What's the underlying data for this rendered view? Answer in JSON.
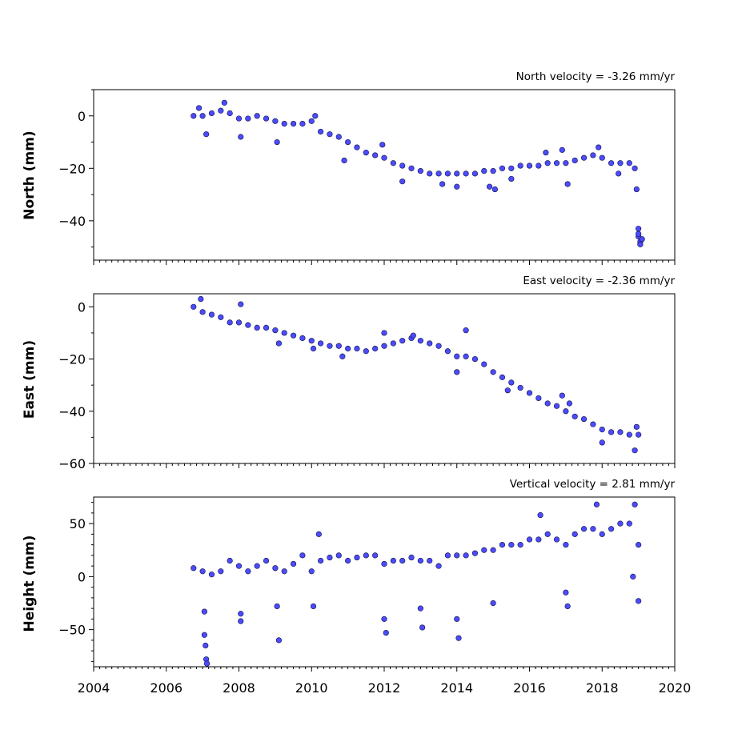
{
  "chart_data": [
    {
      "type": "scatter",
      "title": "North velocity = -3.26 mm/yr",
      "ylabel": "North (mm)",
      "ylim": [
        -55,
        10
      ],
      "yticks": [
        0,
        -20,
        -40
      ],
      "xlim": [
        2004,
        2020
      ],
      "xticks": [],
      "marker_color": "#4b4bff",
      "series": [
        {
          "values": [
            {
              "x": 2006.75,
              "y": 0
            },
            {
              "x": 2007.0,
              "y": 0
            },
            {
              "x": 2007.25,
              "y": 1
            },
            {
              "x": 2007.5,
              "y": 2
            },
            {
              "x": 2007.75,
              "y": 1
            },
            {
              "x": 2008.0,
              "y": -1
            },
            {
              "x": 2008.25,
              "y": -1
            },
            {
              "x": 2008.5,
              "y": 0
            },
            {
              "x": 2008.75,
              "y": -1
            },
            {
              "x": 2009.0,
              "y": -2
            },
            {
              "x": 2009.25,
              "y": -3
            },
            {
              "x": 2009.5,
              "y": -3
            },
            {
              "x": 2009.75,
              "y": -3
            },
            {
              "x": 2010.0,
              "y": -2
            },
            {
              "x": 2010.25,
              "y": -6
            },
            {
              "x": 2010.5,
              "y": -7
            },
            {
              "x": 2010.75,
              "y": -8
            },
            {
              "x": 2011.0,
              "y": -10
            },
            {
              "x": 2011.25,
              "y": -12
            },
            {
              "x": 2011.5,
              "y": -14
            },
            {
              "x": 2011.75,
              "y": -15
            },
            {
              "x": 2012.0,
              "y": -16
            },
            {
              "x": 2012.25,
              "y": -18
            },
            {
              "x": 2012.5,
              "y": -19
            },
            {
              "x": 2012.75,
              "y": -20
            },
            {
              "x": 2013.0,
              "y": -21
            },
            {
              "x": 2013.25,
              "y": -22
            },
            {
              "x": 2013.5,
              "y": -22
            },
            {
              "x": 2013.75,
              "y": -22
            },
            {
              "x": 2014.0,
              "y": -22
            },
            {
              "x": 2014.25,
              "y": -22
            },
            {
              "x": 2014.5,
              "y": -22
            },
            {
              "x": 2014.75,
              "y": -21
            },
            {
              "x": 2015.0,
              "y": -21
            },
            {
              "x": 2015.25,
              "y": -20
            },
            {
              "x": 2015.5,
              "y": -20
            },
            {
              "x": 2015.75,
              "y": -19
            },
            {
              "x": 2016.0,
              "y": -19
            },
            {
              "x": 2016.25,
              "y": -19
            },
            {
              "x": 2016.5,
              "y": -18
            },
            {
              "x": 2016.75,
              "y": -18
            },
            {
              "x": 2017.0,
              "y": -18
            },
            {
              "x": 2017.25,
              "y": -17
            },
            {
              "x": 2017.5,
              "y": -16
            },
            {
              "x": 2017.75,
              "y": -15
            },
            {
              "x": 2018.0,
              "y": -16
            },
            {
              "x": 2018.25,
              "y": -18
            },
            {
              "x": 2018.5,
              "y": -18
            },
            {
              "x": 2018.75,
              "y": -18
            },
            {
              "x": 2018.9,
              "y": -20
            },
            {
              "x": 2006.9,
              "y": 3
            },
            {
              "x": 2007.1,
              "y": -7
            },
            {
              "x": 2007.6,
              "y": 5
            },
            {
              "x": 2008.05,
              "y": -8
            },
            {
              "x": 2009.05,
              "y": -10
            },
            {
              "x": 2010.1,
              "y": 0
            },
            {
              "x": 2010.9,
              "y": -17
            },
            {
              "x": 2011.95,
              "y": -11
            },
            {
              "x": 2012.5,
              "y": -25
            },
            {
              "x": 2013.6,
              "y": -26
            },
            {
              "x": 2014.0,
              "y": -27
            },
            {
              "x": 2014.9,
              "y": -27
            },
            {
              "x": 2015.05,
              "y": -28
            },
            {
              "x": 2015.5,
              "y": -24
            },
            {
              "x": 2016.45,
              "y": -14
            },
            {
              "x": 2016.9,
              "y": -13
            },
            {
              "x": 2017.05,
              "y": -26
            },
            {
              "x": 2017.9,
              "y": -12
            },
            {
              "x": 2018.45,
              "y": -22
            },
            {
              "x": 2018.95,
              "y": -28
            },
            {
              "x": 2019.0,
              "y": -43
            },
            {
              "x": 2019.0,
              "y": -46
            },
            {
              "x": 2019.05,
              "y": -48
            },
            {
              "x": 2019.05,
              "y": -49
            },
            {
              "x": 2019.1,
              "y": -47
            },
            {
              "x": 2019.0,
              "y": -45
            }
          ]
        }
      ]
    },
    {
      "type": "scatter",
      "title": "East velocity = -2.36 mm/yr",
      "ylabel": "East (mm)",
      "ylim": [
        -60,
        5
      ],
      "yticks": [
        0,
        -20,
        -40,
        -60
      ],
      "xlim": [
        2004,
        2020
      ],
      "xticks": [],
      "marker_color": "#4b4bff",
      "series": [
        {
          "values": [
            {
              "x": 2006.75,
              "y": 0
            },
            {
              "x": 2007.0,
              "y": -2
            },
            {
              "x": 2007.25,
              "y": -3
            },
            {
              "x": 2007.5,
              "y": -4
            },
            {
              "x": 2007.75,
              "y": -6
            },
            {
              "x": 2008.0,
              "y": -6
            },
            {
              "x": 2008.25,
              "y": -7
            },
            {
              "x": 2008.5,
              "y": -8
            },
            {
              "x": 2008.75,
              "y": -8
            },
            {
              "x": 2009.0,
              "y": -9
            },
            {
              "x": 2009.25,
              "y": -10
            },
            {
              "x": 2009.5,
              "y": -11
            },
            {
              "x": 2009.75,
              "y": -12
            },
            {
              "x": 2010.0,
              "y": -13
            },
            {
              "x": 2010.25,
              "y": -14
            },
            {
              "x": 2010.5,
              "y": -15
            },
            {
              "x": 2010.75,
              "y": -15
            },
            {
              "x": 2011.0,
              "y": -16
            },
            {
              "x": 2011.25,
              "y": -16
            },
            {
              "x": 2011.5,
              "y": -17
            },
            {
              "x": 2011.75,
              "y": -16
            },
            {
              "x": 2012.0,
              "y": -15
            },
            {
              "x": 2012.25,
              "y": -14
            },
            {
              "x": 2012.5,
              "y": -13
            },
            {
              "x": 2012.75,
              "y": -12
            },
            {
              "x": 2013.0,
              "y": -13
            },
            {
              "x": 2013.25,
              "y": -14
            },
            {
              "x": 2013.5,
              "y": -15
            },
            {
              "x": 2013.75,
              "y": -17
            },
            {
              "x": 2014.0,
              "y": -19
            },
            {
              "x": 2014.25,
              "y": -19
            },
            {
              "x": 2014.5,
              "y": -20
            },
            {
              "x": 2014.75,
              "y": -22
            },
            {
              "x": 2015.0,
              "y": -25
            },
            {
              "x": 2015.25,
              "y": -27
            },
            {
              "x": 2015.5,
              "y": -29
            },
            {
              "x": 2015.75,
              "y": -31
            },
            {
              "x": 2016.0,
              "y": -33
            },
            {
              "x": 2016.25,
              "y": -35
            },
            {
              "x": 2016.5,
              "y": -37
            },
            {
              "x": 2016.75,
              "y": -38
            },
            {
              "x": 2017.0,
              "y": -40
            },
            {
              "x": 2017.25,
              "y": -42
            },
            {
              "x": 2017.5,
              "y": -43
            },
            {
              "x": 2017.75,
              "y": -45
            },
            {
              "x": 2018.0,
              "y": -47
            },
            {
              "x": 2018.25,
              "y": -48
            },
            {
              "x": 2018.5,
              "y": -48
            },
            {
              "x": 2018.75,
              "y": -49
            },
            {
              "x": 2019.0,
              "y": -49
            },
            {
              "x": 2006.95,
              "y": 3
            },
            {
              "x": 2008.05,
              "y": 1
            },
            {
              "x": 2009.1,
              "y": -14
            },
            {
              "x": 2010.05,
              "y": -16
            },
            {
              "x": 2010.85,
              "y": -19
            },
            {
              "x": 2012.0,
              "y": -10
            },
            {
              "x": 2012.8,
              "y": -11
            },
            {
              "x": 2014.25,
              "y": -9
            },
            {
              "x": 2014.0,
              "y": -25
            },
            {
              "x": 2015.4,
              "y": -32
            },
            {
              "x": 2016.9,
              "y": -34
            },
            {
              "x": 2017.1,
              "y": -37
            },
            {
              "x": 2018.0,
              "y": -52
            },
            {
              "x": 2018.9,
              "y": -55
            },
            {
              "x": 2018.95,
              "y": -46
            }
          ]
        }
      ]
    },
    {
      "type": "scatter",
      "title": "Vertical velocity = 2.81 mm/yr",
      "ylabel": "Height (mm)",
      "ylim": [
        -85,
        75
      ],
      "yticks": [
        50,
        0,
        -50
      ],
      "xlim": [
        2004,
        2020
      ],
      "xticks": [
        "2004",
        "2006",
        "2008",
        "2010",
        "2012",
        "2014",
        "2016",
        "2018",
        "2020"
      ],
      "marker_color": "#4b4bff",
      "series": [
        {
          "values": [
            {
              "x": 2006.75,
              "y": 8
            },
            {
              "x": 2007.0,
              "y": 5
            },
            {
              "x": 2007.25,
              "y": 2
            },
            {
              "x": 2007.5,
              "y": 5
            },
            {
              "x": 2007.75,
              "y": 15
            },
            {
              "x": 2008.0,
              "y": 10
            },
            {
              "x": 2008.25,
              "y": 5
            },
            {
              "x": 2008.5,
              "y": 10
            },
            {
              "x": 2008.75,
              "y": 15
            },
            {
              "x": 2009.0,
              "y": 8
            },
            {
              "x": 2009.25,
              "y": 5
            },
            {
              "x": 2009.5,
              "y": 12
            },
            {
              "x": 2009.75,
              "y": 20
            },
            {
              "x": 2010.0,
              "y": 5
            },
            {
              "x": 2010.25,
              "y": 15
            },
            {
              "x": 2010.5,
              "y": 18
            },
            {
              "x": 2010.75,
              "y": 20
            },
            {
              "x": 2011.0,
              "y": 15
            },
            {
              "x": 2011.25,
              "y": 18
            },
            {
              "x": 2011.5,
              "y": 20
            },
            {
              "x": 2011.75,
              "y": 20
            },
            {
              "x": 2012.0,
              "y": 12
            },
            {
              "x": 2012.25,
              "y": 15
            },
            {
              "x": 2012.5,
              "y": 15
            },
            {
              "x": 2012.75,
              "y": 18
            },
            {
              "x": 2013.0,
              "y": 15
            },
            {
              "x": 2013.25,
              "y": 15
            },
            {
              "x": 2013.5,
              "y": 10
            },
            {
              "x": 2013.75,
              "y": 20
            },
            {
              "x": 2014.0,
              "y": 20
            },
            {
              "x": 2014.25,
              "y": 20
            },
            {
              "x": 2014.5,
              "y": 22
            },
            {
              "x": 2014.75,
              "y": 25
            },
            {
              "x": 2015.0,
              "y": 25
            },
            {
              "x": 2015.25,
              "y": 30
            },
            {
              "x": 2015.5,
              "y": 30
            },
            {
              "x": 2015.75,
              "y": 30
            },
            {
              "x": 2016.0,
              "y": 35
            },
            {
              "x": 2016.25,
              "y": 35
            },
            {
              "x": 2016.5,
              "y": 40
            },
            {
              "x": 2016.75,
              "y": 35
            },
            {
              "x": 2017.0,
              "y": 30
            },
            {
              "x": 2017.25,
              "y": 40
            },
            {
              "x": 2017.5,
              "y": 45
            },
            {
              "x": 2017.75,
              "y": 45
            },
            {
              "x": 2018.0,
              "y": 40
            },
            {
              "x": 2018.25,
              "y": 45
            },
            {
              "x": 2018.5,
              "y": 50
            },
            {
              "x": 2018.75,
              "y": 50
            },
            {
              "x": 2019.0,
              "y": 30
            },
            {
              "x": 2007.05,
              "y": -33
            },
            {
              "x": 2007.05,
              "y": -55
            },
            {
              "x": 2007.08,
              "y": -65
            },
            {
              "x": 2007.1,
              "y": -78
            },
            {
              "x": 2007.12,
              "y": -82
            },
            {
              "x": 2008.05,
              "y": -35
            },
            {
              "x": 2008.05,
              "y": -42
            },
            {
              "x": 2009.05,
              "y": -28
            },
            {
              "x": 2009.1,
              "y": -60
            },
            {
              "x": 2010.05,
              "y": -28
            },
            {
              "x": 2012.0,
              "y": -40
            },
            {
              "x": 2012.05,
              "y": -53
            },
            {
              "x": 2013.0,
              "y": -30
            },
            {
              "x": 2013.05,
              "y": -48
            },
            {
              "x": 2014.0,
              "y": -40
            },
            {
              "x": 2014.05,
              "y": -58
            },
            {
              "x": 2015.0,
              "y": -25
            },
            {
              "x": 2017.0,
              "y": -15
            },
            {
              "x": 2017.05,
              "y": -28
            },
            {
              "x": 2019.0,
              "y": -23
            },
            {
              "x": 2017.85,
              "y": 68
            },
            {
              "x": 2018.9,
              "y": 68
            },
            {
              "x": 2016.3,
              "y": 58
            },
            {
              "x": 2010.2,
              "y": 40
            },
            {
              "x": 2018.85,
              "y": 0
            }
          ]
        }
      ]
    }
  ]
}
